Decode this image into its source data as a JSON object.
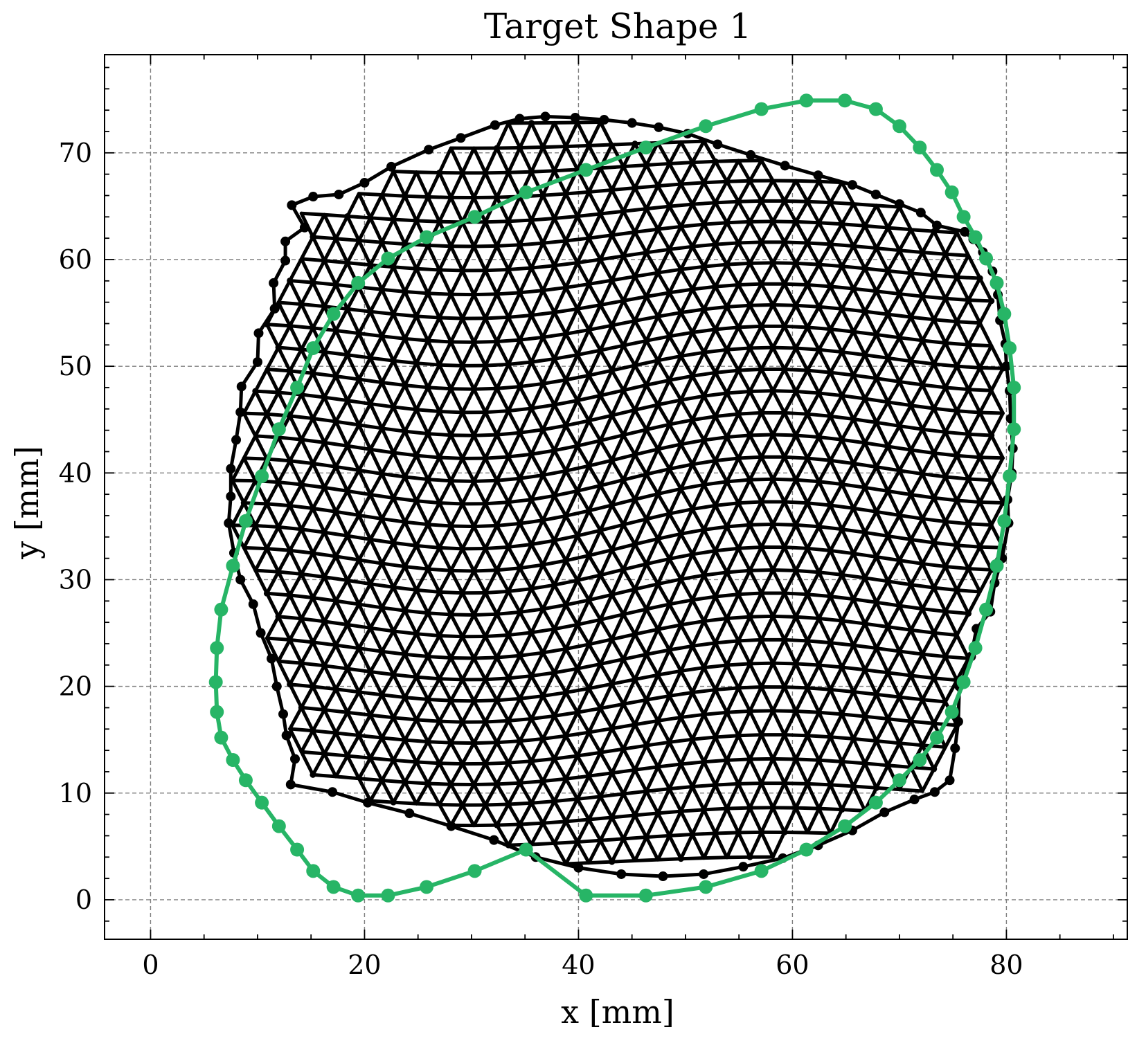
{
  "chart_data": {
    "type": "line",
    "title": "Target Shape 1",
    "xlabel": "x [mm]",
    "ylabel": "y [mm]",
    "xlim": [
      -4.3,
      91.3
    ],
    "ylim": [
      -3.7,
      79.2
    ],
    "xticks": [
      0,
      20,
      40,
      60,
      80
    ],
    "yticks": [
      0,
      10,
      20,
      30,
      40,
      50,
      60,
      70
    ],
    "x_minor_step": 5,
    "y_minor_step": 2,
    "grid": true,
    "grid_style": "dashed",
    "legend": "none",
    "colors": {
      "target": "#27b566",
      "mesh": "#000000",
      "grid": "#808080"
    },
    "series": [
      {
        "role": "target-contour",
        "color": "#27b566",
        "closed": true,
        "x": [
          40.7,
          46.3,
          51.9,
          57.1,
          61.3,
          64.9,
          67.8,
          70.0,
          71.9,
          73.5,
          74.9,
          76.0,
          77.1,
          78.1,
          79.1,
          79.8,
          80.3,
          80.7,
          80.7,
          80.3,
          79.8,
          79.1,
          78.1,
          77.1,
          76.0,
          74.9,
          73.5,
          71.9,
          70.0,
          67.8,
          64.9,
          61.3,
          57.1,
          51.9,
          46.3,
          40.7,
          35.1,
          30.3,
          25.8,
          22.2,
          19.4,
          17.1,
          15.2,
          13.7,
          12.0,
          10.4,
          8.9,
          7.7,
          6.6,
          6.2,
          6.1,
          6.2,
          6.6,
          7.7,
          8.9,
          10.4,
          12.0,
          13.7,
          15.2,
          17.1,
          19.4,
          22.2,
          25.8,
          30.3,
          35.1
        ],
        "y": [
          0.4,
          0.4,
          1.2,
          2.7,
          4.7,
          6.9,
          9.1,
          11.2,
          13.1,
          15.2,
          17.6,
          20.4,
          23.6,
          27.2,
          31.3,
          35.5,
          39.7,
          44.1,
          48.0,
          51.7,
          54.9,
          57.8,
          60.1,
          62.1,
          64.0,
          66.3,
          68.4,
          70.5,
          72.5,
          74.1,
          74.9,
          74.9,
          74.1,
          72.5,
          70.5,
          68.4,
          66.3,
          64.0,
          62.1,
          60.1,
          57.8,
          54.9,
          51.7,
          48.0,
          44.1,
          39.7,
          35.5,
          31.3,
          27.2,
          23.6,
          20.4,
          17.6,
          15.2,
          13.1,
          11.2,
          9.1,
          6.9,
          4.7,
          2.7,
          1.2,
          0.4,
          0.4,
          1.2,
          2.7,
          4.7
        ]
      },
      {
        "role": "deformed-mesh-outline",
        "color": "#000000",
        "closed": true,
        "x": [
          13.1,
          17.0,
          20.3,
          24.2,
          28.1,
          32.1,
          36.0,
          40.0,
          44.0,
          47.9,
          51.7,
          55.4,
          59.1,
          62.4,
          65.6,
          68.6,
          71.4,
          73.3,
          74.7,
          75.2,
          75.5,
          75.6,
          76.7,
          77.2,
          78.5,
          78.9,
          79.6,
          80.2,
          80.1,
          80.5,
          80.6,
          80.4,
          80.3,
          80.0,
          79.9,
          79.4,
          79.2,
          78.7,
          77.8,
          76.9,
          76.1,
          73.5,
          72.0,
          70.0,
          67.8,
          65.6,
          62.4,
          59.3,
          56.1,
          53.0,
          50.2,
          47.5,
          45.0,
          42.4,
          39.7,
          36.9,
          34.5,
          32.2,
          29.0,
          26.0,
          22.5,
          20.0,
          17.6,
          15.2,
          13.2,
          14.4,
          12.6,
          12.6,
          11.5,
          11.6,
          10.1,
          10.0,
          8.5,
          8.4,
          8.0,
          7.5,
          7.5,
          7.3,
          7.8,
          8.4,
          9.6,
          10.3,
          11.3,
          11.8,
          12.4,
          12.7,
          13.5
        ],
        "y": [
          10.8,
          10.1,
          9.1,
          8.1,
          6.9,
          5.6,
          4.0,
          3.0,
          2.4,
          2.2,
          2.4,
          3.1,
          3.9,
          5.1,
          6.5,
          8.2,
          9.4,
          10.1,
          11.2,
          14.2,
          16.7,
          20.0,
          22.8,
          25.4,
          27.0,
          29.7,
          32.0,
          35.3,
          37.5,
          40.0,
          42.3,
          45.1,
          47.7,
          50.0,
          52.1,
          54.3,
          56.7,
          58.9,
          60.7,
          61.9,
          62.6,
          63.2,
          64.4,
          65.2,
          66.1,
          67.0,
          67.9,
          68.8,
          69.8,
          70.8,
          71.8,
          72.4,
          72.8,
          73.1,
          73.3,
          73.4,
          73.2,
          72.6,
          71.4,
          70.3,
          68.7,
          67.2,
          66.1,
          65.9,
          65.1,
          63.0,
          61.7,
          59.9,
          57.8,
          55.4,
          53.1,
          50.4,
          48.1,
          45.7,
          43.1,
          40.4,
          37.8,
          35.3,
          32.5,
          30.0,
          27.7,
          25.0,
          22.6,
          20.0,
          17.4,
          15.4,
          13.2
        ]
      }
    ],
    "mesh": {
      "rows": 36,
      "cols": 40,
      "note_description": "triangulated lattice (black) whose rows bow downward on the left half and upward on the right half"
    }
  }
}
